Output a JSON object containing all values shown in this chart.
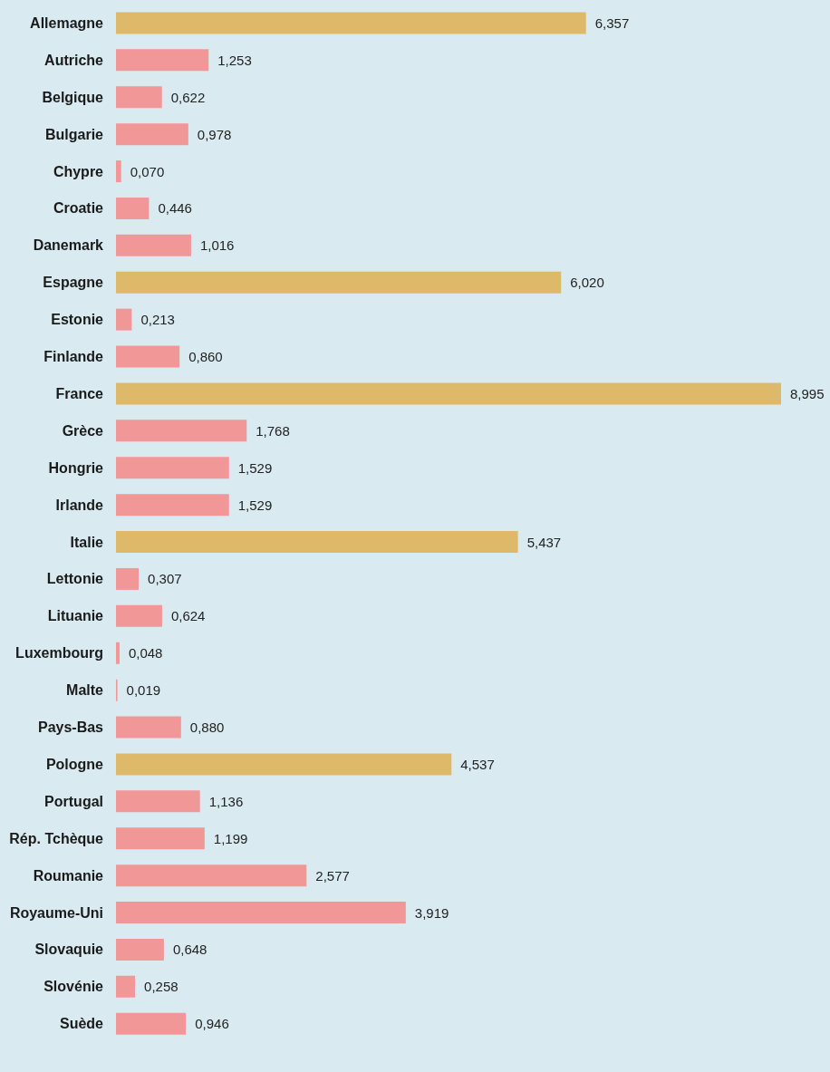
{
  "chart_data": {
    "type": "bar",
    "orientation": "horizontal",
    "categories": [
      "Allemagne",
      "Autriche",
      "Belgique",
      "Bulgarie",
      "Chypre",
      "Croatie",
      "Danemark",
      "Espagne",
      "Estonie",
      "Finlande",
      "France",
      "Grèce",
      "Hongrie",
      "Irlande",
      "Italie",
      "Lettonie",
      "Lituanie",
      "Luxembourg",
      "Malte",
      "Pays-Bas",
      "Pologne",
      "Portugal",
      "Rép. Tchèque",
      "Roumanie",
      "Royaume-Uni",
      "Slovaquie",
      "Slovénie",
      "Suède"
    ],
    "values": [
      6.357,
      1.253,
      0.622,
      0.978,
      0.07,
      0.446,
      1.016,
      6.02,
      0.213,
      0.86,
      8.995,
      1.768,
      1.529,
      1.529,
      5.437,
      0.307,
      0.624,
      0.048,
      0.019,
      0.88,
      4.537,
      1.136,
      1.199,
      2.577,
      3.919,
      0.648,
      0.258,
      0.946
    ],
    "value_labels": [
      "6,357",
      "1,253",
      "0,622",
      "0,978",
      "0,070",
      "0,446",
      "1,016",
      "6,020",
      "0,213",
      "0,860",
      "8,995",
      "1,768",
      "1,529",
      "1,529",
      "5,437",
      "0,307",
      "0,624",
      "0,048",
      "0,019",
      "0,880",
      "4,537",
      "1,136",
      "1,199",
      "2,577",
      "3,919",
      "0,648",
      "0,258",
      "0,946"
    ],
    "colors": [
      "#dfb96a",
      "#f29797",
      "#f29797",
      "#f29797",
      "#f29797",
      "#f29797",
      "#f29797",
      "#dfb96a",
      "#f29797",
      "#f29797",
      "#dfb96a",
      "#f29797",
      "#f29797",
      "#f29797",
      "#dfb96a",
      "#f29797",
      "#f29797",
      "#f29797",
      "#f29797",
      "#f29797",
      "#dfb96a",
      "#f29797",
      "#f29797",
      "#f29797",
      "#f29797",
      "#f29797",
      "#f29797",
      "#f29797"
    ],
    "grid": false
  }
}
